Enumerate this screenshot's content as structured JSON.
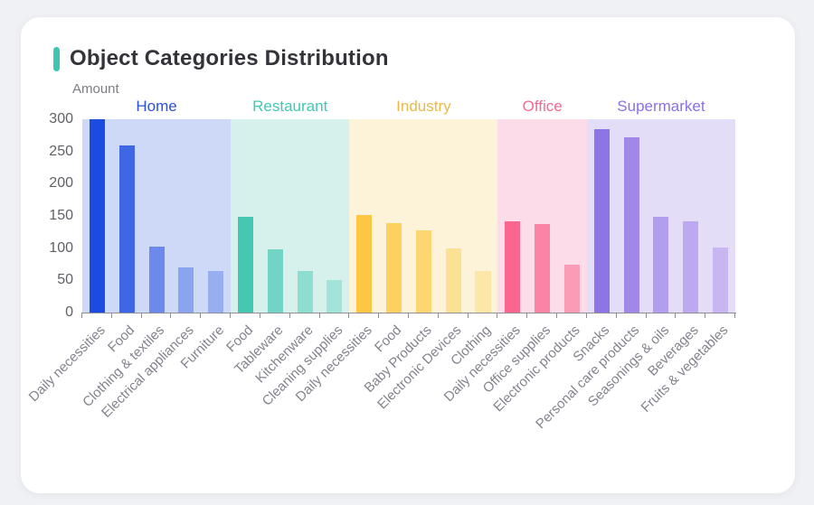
{
  "card": {
    "title": "Object Categories Distribution",
    "accent_color": "#3ec6b3"
  },
  "chart_data": {
    "type": "bar",
    "title": "Object Categories Distribution",
    "xlabel": "",
    "ylabel": "Amount",
    "ylim": [
      0,
      300
    ],
    "y_ticks": [
      300,
      250,
      200,
      150,
      100,
      50,
      0
    ],
    "grid": false,
    "legend_position": "top-inside",
    "groups": [
      {
        "name": "Home",
        "label_color": "#2d50e2",
        "band_color": "#cdd9f6",
        "categories": [
          "Daily necessities",
          "Food",
          "Clothing & textiles",
          "Electrical appliances",
          "Furniture"
        ],
        "values": [
          300,
          259,
          103,
          70,
          65
        ],
        "bar_colors": [
          "#1b4ce0",
          "#3e66e5",
          "#6c8aec",
          "#8aa5f0",
          "#97aff1"
        ]
      },
      {
        "name": "Restaurant",
        "label_color": "#3fc8b5",
        "band_color": "#d6f1ec",
        "categories": [
          "Food",
          "Tableware",
          "Kitchenware",
          "Cleaning supplies"
        ],
        "values": [
          148,
          98,
          65,
          51
        ],
        "bar_colors": [
          "#45c7b3",
          "#73d4c6",
          "#8eddd1",
          "#a4e3d9"
        ]
      },
      {
        "name": "Industry",
        "label_color": "#eab947",
        "band_color": "#fdf3d9",
        "categories": [
          "Daily necessities",
          "Food",
          "Baby Products",
          "Electronic Devices",
          "Clothing"
        ],
        "values": [
          151,
          139,
          127,
          100,
          64
        ],
        "bar_colors": [
          "#fdc644",
          "#fdd05f",
          "#fdd672",
          "#fde193",
          "#fce7a8"
        ]
      },
      {
        "name": "Office",
        "label_color": "#f7688f",
        "band_color": "#fcdce8",
        "categories": [
          "Daily necessities",
          "Office supplies",
          "Electronic products"
        ],
        "values": [
          142,
          138,
          75
        ],
        "bar_colors": [
          "#fb6690",
          "#fb84a4",
          "#fb9cb6"
        ]
      },
      {
        "name": "Supermarket",
        "label_color": "#8a70e5",
        "band_color": "#e3ddf8",
        "categories": [
          "Snacks",
          "Personal care products",
          "Seasonings & oils",
          "Beverages",
          "Fruits & vegetables"
        ],
        "values": [
          285,
          272,
          148,
          141,
          101
        ],
        "bar_colors": [
          "#8e74e4",
          "#a188e8",
          "#b39eed",
          "#bca9ef",
          "#c7b6f2"
        ]
      }
    ]
  }
}
